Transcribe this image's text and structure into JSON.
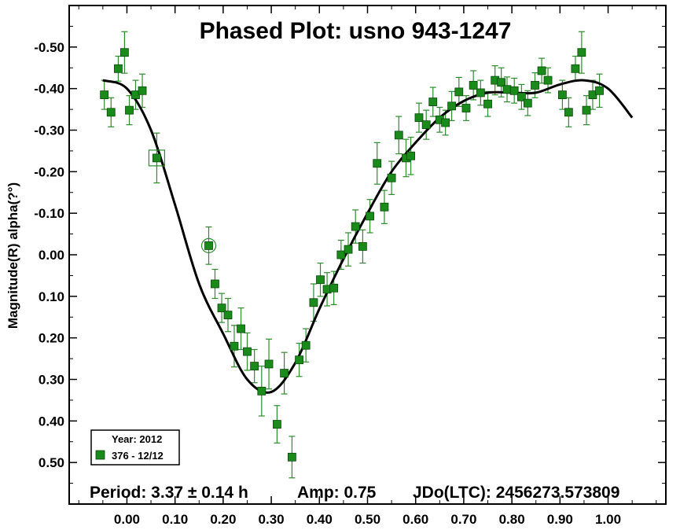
{
  "chart_data": {
    "type": "scatter",
    "title": "Phased Plot: usno 943-1247",
    "xlabel": "",
    "ylabel": "Magnitude(R) alpha(?°)",
    "xlim": [
      -0.12,
      1.12
    ],
    "ylim": [
      -0.6,
      0.6
    ],
    "y_inverted": true,
    "x_ticks": [
      0.0,
      0.1,
      0.2,
      0.3,
      0.4,
      0.5,
      0.6,
      0.7,
      0.8,
      0.9,
      1.0
    ],
    "x_tick_labels": [
      "0.00",
      "0.10",
      "0.20",
      "0.30",
      "0.40",
      "0.50",
      "0.60",
      "0.70",
      "0.80",
      "0.90",
      "1.00"
    ],
    "y_ticks": [
      -0.5,
      -0.4,
      -0.3,
      -0.2,
      -0.1,
      0.0,
      0.1,
      0.2,
      0.3,
      0.4,
      0.5
    ],
    "y_tick_labels": [
      "-0.50",
      "-0.40",
      "-0.30",
      "-0.20",
      "-0.10",
      "0.00",
      "0.10",
      "0.20",
      "0.30",
      "0.40",
      "0.50"
    ],
    "grid": false,
    "legend": {
      "placement": "bottom-left",
      "header": "Year: 2012",
      "entries": [
        {
          "label": "376 - 12/12",
          "color": "#1a8a1a"
        }
      ]
    },
    "annotations": {
      "period": "Period: 3.37 ± 0.14 h",
      "amp": "Amp: 0.75",
      "jd": "JDo(LTC): 2456273.573809"
    },
    "colors": {
      "points": "#1a8a1a",
      "error_bars": "#2e8b2e",
      "curve": "#000000"
    },
    "series": [
      {
        "values": [
          [
            -0.047,
            -0.385,
            0.035
          ],
          [
            -0.033,
            -0.343,
            0.035
          ],
          [
            -0.018,
            -0.448,
            0.03
          ],
          [
            -0.005,
            -0.487,
            0.05
          ],
          [
            0.005,
            -0.348,
            0.035
          ],
          [
            0.018,
            -0.385,
            0.035
          ],
          [
            0.032,
            -0.395,
            0.04
          ],
          [
            0.062,
            -0.233,
            0.06
          ],
          [
            0.17,
            -0.022,
            0.045
          ],
          [
            0.183,
            0.07,
            0.035
          ],
          [
            0.197,
            0.128,
            0.035
          ],
          [
            0.21,
            0.145,
            0.04
          ],
          [
            0.223,
            0.22,
            0.05
          ],
          [
            0.237,
            0.178,
            0.05
          ],
          [
            0.25,
            0.233,
            0.045
          ],
          [
            0.265,
            0.268,
            0.04
          ],
          [
            0.28,
            0.328,
            0.06
          ],
          [
            0.295,
            0.263,
            0.06
          ],
          [
            0.312,
            0.408,
            0.045
          ],
          [
            0.327,
            0.285,
            0.05
          ],
          [
            0.343,
            0.487,
            0.05
          ],
          [
            0.358,
            0.253,
            0.04
          ],
          [
            0.372,
            0.218,
            0.04
          ],
          [
            0.388,
            0.115,
            0.045
          ],
          [
            0.402,
            0.06,
            0.04
          ],
          [
            0.416,
            0.083,
            0.04
          ],
          [
            0.43,
            0.08,
            0.04
          ],
          [
            0.445,
            0.0,
            0.035
          ],
          [
            0.46,
            -0.013,
            0.04
          ],
          [
            0.475,
            -0.068,
            0.04
          ],
          [
            0.49,
            -0.02,
            0.04
          ],
          [
            0.505,
            -0.093,
            0.04
          ],
          [
            0.52,
            -0.22,
            0.05
          ],
          [
            0.535,
            -0.115,
            0.04
          ],
          [
            0.55,
            -0.185,
            0.04
          ],
          [
            0.565,
            -0.288,
            0.045
          ],
          [
            0.58,
            -0.233,
            0.045
          ],
          [
            0.59,
            -0.238,
            0.045
          ],
          [
            0.607,
            -0.33,
            0.035
          ],
          [
            0.622,
            -0.313,
            0.035
          ],
          [
            0.636,
            -0.368,
            0.035
          ],
          [
            0.65,
            -0.325,
            0.03
          ],
          [
            0.662,
            -0.318,
            0.03
          ],
          [
            0.675,
            -0.358,
            0.035
          ],
          [
            0.69,
            -0.392,
            0.035
          ],
          [
            0.705,
            -0.353,
            0.03
          ],
          [
            0.72,
            -0.408,
            0.035
          ],
          [
            0.735,
            -0.39,
            0.03
          ],
          [
            0.75,
            -0.363,
            0.03
          ],
          [
            0.765,
            -0.42,
            0.035
          ],
          [
            0.778,
            -0.415,
            0.035
          ],
          [
            0.79,
            -0.398,
            0.03
          ],
          [
            0.805,
            -0.395,
            0.03
          ],
          [
            0.82,
            -0.38,
            0.03
          ],
          [
            0.833,
            -0.365,
            0.03
          ],
          [
            0.848,
            -0.408,
            0.03
          ],
          [
            0.862,
            -0.443,
            0.03
          ],
          [
            0.875,
            -0.42,
            0.03
          ],
          [
            0.905,
            -0.385,
            0.035
          ],
          [
            0.918,
            -0.343,
            0.035
          ],
          [
            0.932,
            -0.448,
            0.03
          ],
          [
            0.945,
            -0.487,
            0.05
          ],
          [
            0.955,
            -0.348,
            0.035
          ],
          [
            0.968,
            -0.385,
            0.035
          ],
          [
            0.982,
            -0.395,
            0.04
          ]
        ],
        "value_format": "[phase, magnitude, error]"
      }
    ],
    "fit_curve": {
      "points": [
        [
          -0.05,
          -0.42
        ],
        [
          0.0,
          -0.4
        ],
        [
          0.05,
          -0.3
        ],
        [
          0.1,
          -0.12
        ],
        [
          0.15,
          0.07
        ],
        [
          0.2,
          0.19
        ],
        [
          0.25,
          0.3
        ],
        [
          0.3,
          0.33
        ],
        [
          0.35,
          0.26
        ],
        [
          0.4,
          0.13
        ],
        [
          0.45,
          0.01
        ],
        [
          0.5,
          -0.1
        ],
        [
          0.55,
          -0.2
        ],
        [
          0.6,
          -0.27
        ],
        [
          0.65,
          -0.33
        ],
        [
          0.7,
          -0.37
        ],
        [
          0.75,
          -0.39
        ],
        [
          0.8,
          -0.39
        ],
        [
          0.85,
          -0.39
        ],
        [
          0.9,
          -0.41
        ],
        [
          0.95,
          -0.42
        ],
        [
          1.0,
          -0.4
        ],
        [
          1.05,
          -0.33
        ]
      ]
    }
  }
}
